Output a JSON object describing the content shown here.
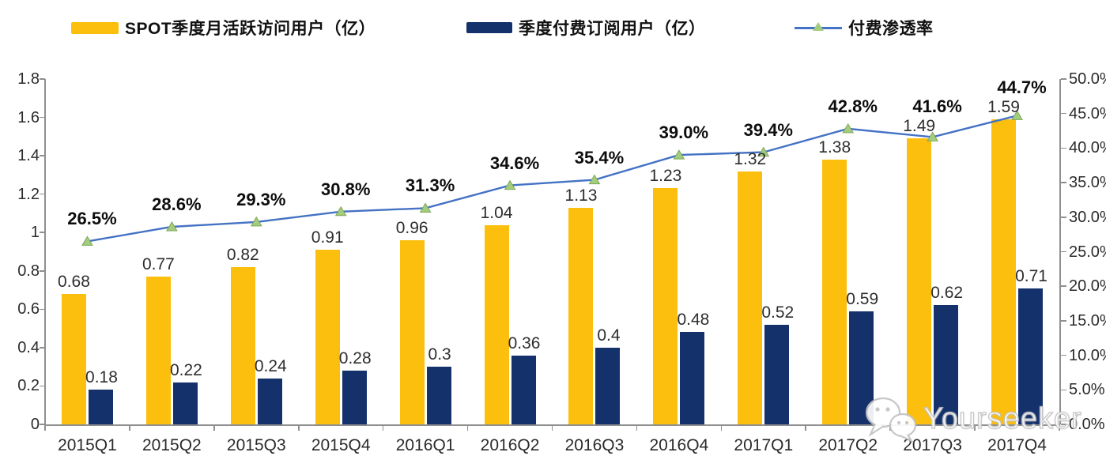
{
  "legend": {
    "items": [
      {
        "label": "SPOT季度月活跃访问用户（亿）",
        "marker": "bar-swatch",
        "color": "#FCBF0D"
      },
      {
        "label": "季度付费订阅用户（亿）",
        "marker": "bar-swatch",
        "color": "#14316B"
      },
      {
        "label": "付费渗透率",
        "marker": "line-with-triangle",
        "color": "#4472C4",
        "marker_color": "#A3CC7E"
      }
    ]
  },
  "watermark": {
    "text": "Yourseeker",
    "icon": "wechat-icon"
  },
  "chart_data": {
    "type": "combo-bar-line",
    "categories": [
      "2015Q1",
      "2015Q2",
      "2015Q3",
      "2015Q4",
      "2016Q1",
      "2016Q2",
      "2016Q3",
      "2016Q4",
      "2017Q1",
      "2017Q2",
      "2017Q3",
      "2017Q4"
    ],
    "series": [
      {
        "name": "SPOT季度月活跃访问用户（亿）",
        "type": "bar",
        "axis": "left",
        "color": "#FCBF0D",
        "values": [
          0.68,
          0.77,
          0.82,
          0.91,
          0.96,
          1.04,
          1.13,
          1.23,
          1.32,
          1.38,
          1.49,
          1.59
        ],
        "labels": [
          "0.68",
          "0.77",
          "0.82",
          "0.91",
          "0.96",
          "1.04",
          "1.13",
          "1.23",
          "1.32",
          "1.38",
          "1.49",
          "1.59"
        ]
      },
      {
        "name": "季度付费订阅用户（亿）",
        "type": "bar",
        "axis": "left",
        "color": "#14316B",
        "values": [
          0.18,
          0.22,
          0.24,
          0.28,
          0.3,
          0.36,
          0.4,
          0.48,
          0.52,
          0.59,
          0.62,
          0.71
        ],
        "labels": [
          "0.18",
          "0.22",
          "0.24",
          "0.28",
          "0.3",
          "0.36",
          "0.4",
          "0.48",
          "0.52",
          "0.59",
          "0.62",
          "0.71"
        ]
      },
      {
        "name": "付费渗透率",
        "type": "line",
        "axis": "right",
        "color": "#4472C4",
        "marker": "triangle",
        "marker_color": "#A3CC7E",
        "marker_edge_color": "#7FA757",
        "values": [
          26.5,
          28.6,
          29.3,
          30.8,
          31.3,
          34.6,
          35.4,
          39.0,
          39.4,
          42.8,
          41.6,
          44.7
        ],
        "labels": [
          "26.5%",
          "28.6%",
          "29.3%",
          "30.8%",
          "31.3%",
          "34.6%",
          "35.4%",
          "39.0%",
          "39.4%",
          "42.8%",
          "41.6%",
          "44.7%"
        ]
      }
    ],
    "left_axis": {
      "min": 0,
      "max": 1.8,
      "step": 0.2,
      "tick_labels": [
        "0",
        "0.2",
        "0.4",
        "0.6",
        "0.8",
        "1",
        "1.2",
        "1.4",
        "1.6",
        "1.8"
      ]
    },
    "right_axis": {
      "min": 0,
      "max": 50,
      "step": 5,
      "unit": "%",
      "tick_labels": [
        "0.0%",
        "5.0%",
        "10.0%",
        "15.0%",
        "20.0%",
        "25.0%",
        "30.0%",
        "35.0%",
        "40.0%",
        "45.0%",
        "50.0%"
      ]
    },
    "grid": false,
    "legend_position": "top",
    "plot_background": "#FFFFFF",
    "title": ""
  }
}
